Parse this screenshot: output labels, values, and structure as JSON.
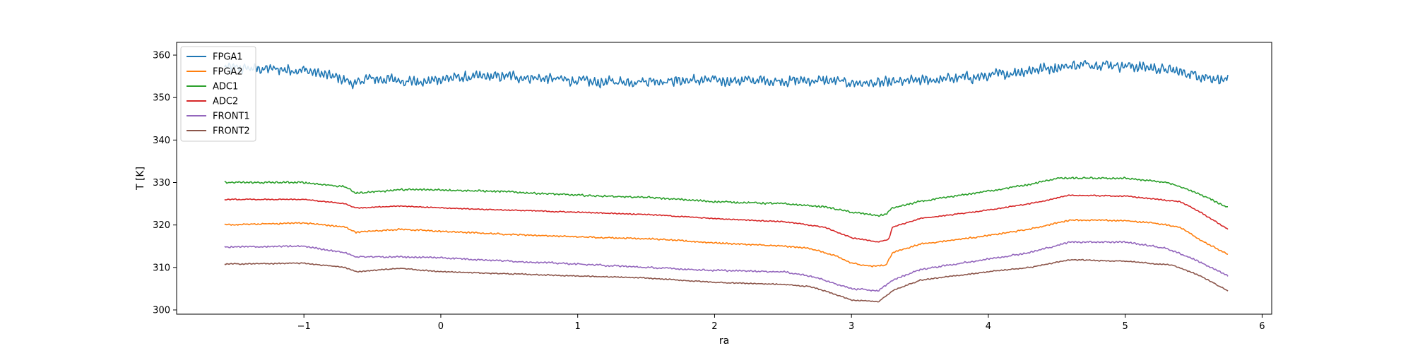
{
  "chart_data": {
    "type": "line",
    "title": "",
    "xlabel": "ra",
    "ylabel": "T [K]",
    "xlim": [
      -1.93,
      6.07
    ],
    "ylim": [
      299,
      363
    ],
    "xticks": [
      -1,
      0,
      1,
      2,
      3,
      4,
      5,
      6
    ],
    "xtick_labels": [
      "−1",
      "0",
      "1",
      "2",
      "3",
      "4",
      "5",
      "6"
    ],
    "yticks": [
      300,
      310,
      320,
      330,
      340,
      350,
      360
    ],
    "yticks_labels": [
      "300",
      "310",
      "320",
      "330",
      "340",
      "350",
      "360"
    ],
    "grid": false,
    "legend": "top-left",
    "series": [
      {
        "name": "FPGA1",
        "color": "#1f77b4",
        "noise": 2.8,
        "points": [
          [
            -1.58,
            357.0
          ],
          [
            -1.0,
            356.5
          ],
          [
            -0.7,
            354.2
          ],
          [
            -0.62,
            353.0
          ],
          [
            -0.55,
            354.5
          ],
          [
            -0.2,
            354.0
          ],
          [
            -0.15,
            353.3
          ],
          [
            0.0,
            354.5
          ],
          [
            0.5,
            355.0
          ],
          [
            1.0,
            354.0
          ],
          [
            1.1,
            353.5
          ],
          [
            1.5,
            354.0
          ],
          [
            2.0,
            354.0
          ],
          [
            2.5,
            354.0
          ],
          [
            2.8,
            354.0
          ],
          [
            3.0,
            353.5
          ],
          [
            3.2,
            353.3
          ],
          [
            3.3,
            353.5
          ],
          [
            3.5,
            354.0
          ],
          [
            4.0,
            355.0
          ],
          [
            4.3,
            356.5
          ],
          [
            4.6,
            357.5
          ],
          [
            4.8,
            358.0
          ],
          [
            5.2,
            357.0
          ],
          [
            5.5,
            355.5
          ],
          [
            5.75,
            354.0
          ]
        ]
      },
      {
        "name": "FPGA2",
        "color": "#ff7f0e",
        "noise": 0.4,
        "points": [
          [
            -1.58,
            320.0
          ],
          [
            -1.0,
            320.5
          ],
          [
            -0.7,
            319.5
          ],
          [
            -0.62,
            318.3
          ],
          [
            -0.3,
            319.0
          ],
          [
            0.0,
            318.5
          ],
          [
            0.5,
            317.8
          ],
          [
            1.0,
            317.2
          ],
          [
            1.5,
            316.8
          ],
          [
            2.0,
            315.8
          ],
          [
            2.5,
            315.0
          ],
          [
            2.7,
            314.5
          ],
          [
            2.9,
            312.5
          ],
          [
            3.0,
            311.0
          ],
          [
            3.15,
            310.3
          ],
          [
            3.25,
            310.5
          ],
          [
            3.3,
            313.5
          ],
          [
            3.5,
            315.5
          ],
          [
            4.0,
            317.5
          ],
          [
            4.3,
            319.0
          ],
          [
            4.6,
            321.2
          ],
          [
            5.0,
            321.0
          ],
          [
            5.2,
            320.5
          ],
          [
            5.4,
            319.5
          ],
          [
            5.55,
            316.5
          ],
          [
            5.75,
            313.0
          ]
        ]
      },
      {
        "name": "ADC1",
        "color": "#2ca02c",
        "noise": 0.5,
        "points": [
          [
            -1.58,
            330.0
          ],
          [
            -1.0,
            330.0
          ],
          [
            -0.7,
            329.0
          ],
          [
            -0.62,
            327.5
          ],
          [
            -0.3,
            328.3
          ],
          [
            0.0,
            328.3
          ],
          [
            0.5,
            327.8
          ],
          [
            1.0,
            327.0
          ],
          [
            1.5,
            326.5
          ],
          [
            2.0,
            325.5
          ],
          [
            2.5,
            325.0
          ],
          [
            2.8,
            324.3
          ],
          [
            3.0,
            323.0
          ],
          [
            3.2,
            322.2
          ],
          [
            3.25,
            322.5
          ],
          [
            3.3,
            324.0
          ],
          [
            3.5,
            325.5
          ],
          [
            4.0,
            328.0
          ],
          [
            4.3,
            329.5
          ],
          [
            4.5,
            331.0
          ],
          [
            5.0,
            331.0
          ],
          [
            5.3,
            330.0
          ],
          [
            5.45,
            328.5
          ],
          [
            5.6,
            326.5
          ],
          [
            5.75,
            324.0
          ]
        ]
      },
      {
        "name": "ADC2",
        "color": "#d62728",
        "noise": 0.3,
        "points": [
          [
            -1.58,
            326.0
          ],
          [
            -1.0,
            326.0
          ],
          [
            -0.7,
            325.0
          ],
          [
            -0.62,
            324.0
          ],
          [
            -0.3,
            324.5
          ],
          [
            0.0,
            324.0
          ],
          [
            0.5,
            323.5
          ],
          [
            1.0,
            323.0
          ],
          [
            1.5,
            322.5
          ],
          [
            2.0,
            321.5
          ],
          [
            2.5,
            320.8
          ],
          [
            2.8,
            319.5
          ],
          [
            3.0,
            317.0
          ],
          [
            3.2,
            316.0
          ],
          [
            3.27,
            316.5
          ],
          [
            3.3,
            319.5
          ],
          [
            3.5,
            321.5
          ],
          [
            4.0,
            323.5
          ],
          [
            4.3,
            325.0
          ],
          [
            4.6,
            327.0
          ],
          [
            5.0,
            326.8
          ],
          [
            5.4,
            325.5
          ],
          [
            5.55,
            323.0
          ],
          [
            5.75,
            319.0
          ]
        ]
      },
      {
        "name": "FRONT1",
        "color": "#9467bd",
        "noise": 0.45,
        "points": [
          [
            -1.58,
            314.8
          ],
          [
            -1.0,
            315.0
          ],
          [
            -0.7,
            313.5
          ],
          [
            -0.62,
            312.5
          ],
          [
            -0.3,
            312.5
          ],
          [
            0.0,
            312.3
          ],
          [
            0.5,
            311.5
          ],
          [
            1.0,
            310.8
          ],
          [
            1.5,
            310.0
          ],
          [
            2.0,
            309.3
          ],
          [
            2.5,
            309.0
          ],
          [
            2.7,
            308.0
          ],
          [
            2.9,
            306.0
          ],
          [
            3.0,
            305.0
          ],
          [
            3.2,
            304.5
          ],
          [
            3.3,
            307.0
          ],
          [
            3.5,
            309.5
          ],
          [
            4.0,
            312.0
          ],
          [
            4.3,
            313.5
          ],
          [
            4.6,
            316.0
          ],
          [
            5.0,
            316.0
          ],
          [
            5.3,
            314.5
          ],
          [
            5.5,
            312.0
          ],
          [
            5.75,
            308.0
          ]
        ]
      },
      {
        "name": "FRONT2",
        "color": "#8c564b",
        "noise": 0.3,
        "points": [
          [
            -1.58,
            310.8
          ],
          [
            -1.0,
            311.0
          ],
          [
            -0.7,
            310.0
          ],
          [
            -0.62,
            309.0
          ],
          [
            -0.3,
            309.8
          ],
          [
            0.0,
            309.0
          ],
          [
            0.5,
            308.5
          ],
          [
            1.0,
            308.0
          ],
          [
            1.5,
            307.5
          ],
          [
            2.0,
            306.5
          ],
          [
            2.5,
            306.0
          ],
          [
            2.7,
            305.5
          ],
          [
            2.9,
            303.5
          ],
          [
            3.0,
            302.3
          ],
          [
            3.2,
            302.0
          ],
          [
            3.3,
            304.5
          ],
          [
            3.5,
            307.0
          ],
          [
            4.0,
            309.0
          ],
          [
            4.3,
            310.0
          ],
          [
            4.6,
            311.8
          ],
          [
            5.0,
            311.5
          ],
          [
            5.35,
            310.5
          ],
          [
            5.55,
            308.0
          ],
          [
            5.75,
            304.5
          ]
        ]
      }
    ]
  }
}
